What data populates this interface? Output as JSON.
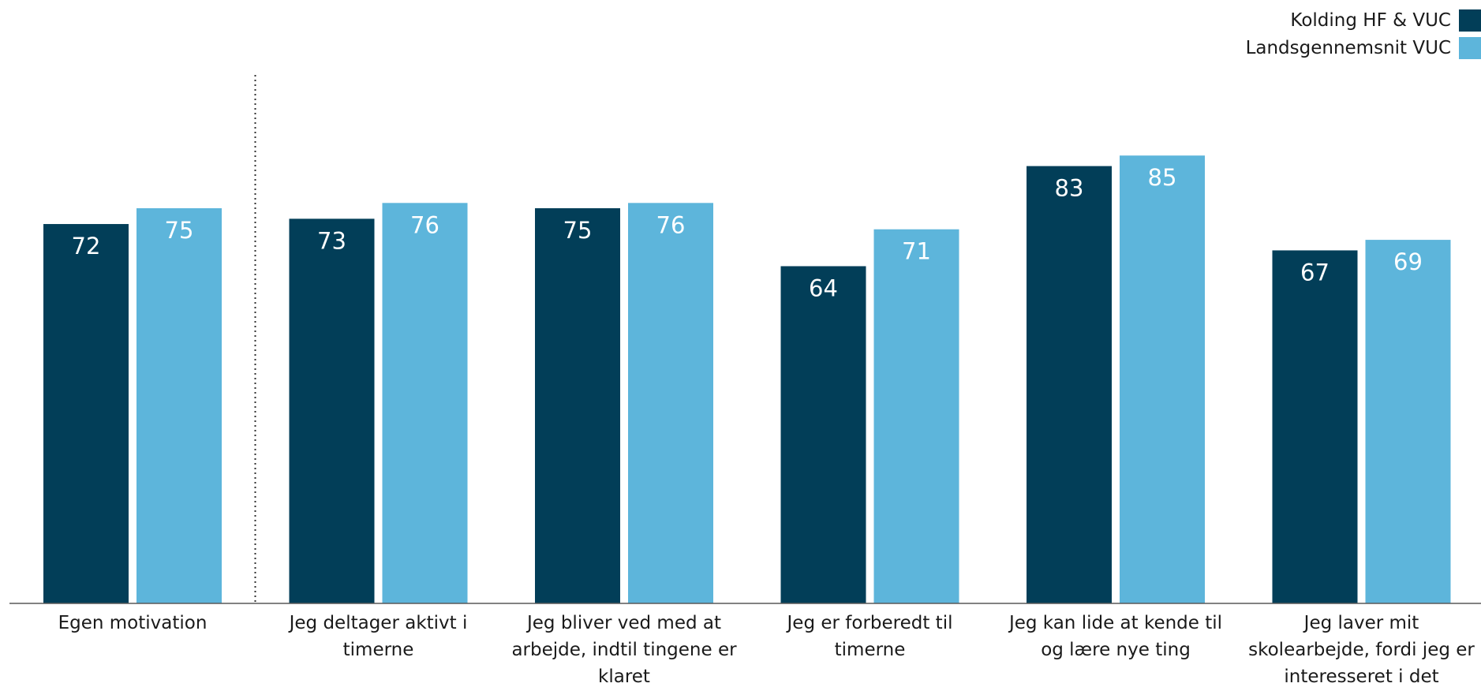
{
  "chart_data": {
    "type": "bar",
    "categories": [
      "Egen motivation",
      "Jeg deltager aktivt i timerne",
      "Jeg bliver ved med at arbejde, indtil tingene er klaret",
      "Jeg er forberedt til timerne",
      "Jeg kan lide at kende til og lære nye ting",
      "Jeg laver mit skolearbejde, fordi jeg er interesseret i det"
    ],
    "category_lines": [
      [
        "Egen motivation"
      ],
      [
        "Jeg deltager aktivt i",
        "timerne"
      ],
      [
        "Jeg bliver ved med at",
        "arbejde, indtil tingene er",
        "klaret"
      ],
      [
        "Jeg er forberedt til",
        "timerne"
      ],
      [
        "Jeg kan lide at kende til",
        "og lære nye ting"
      ],
      [
        "Jeg laver mit",
        "skolearbejde, fordi jeg er",
        "interesseret i det"
      ]
    ],
    "series": [
      {
        "name": "Kolding HF & VUC",
        "values": [
          72,
          73,
          75,
          64,
          83,
          67
        ],
        "color": "#023e58"
      },
      {
        "name": "Landsgennemsnit VUC",
        "values": [
          75,
          76,
          76,
          71,
          85,
          69
        ],
        "color": "#5db5db"
      }
    ],
    "ylim": [
      0,
      100
    ],
    "legend_position": "top-right",
    "separator_after_first_category": true,
    "grid": false
  }
}
